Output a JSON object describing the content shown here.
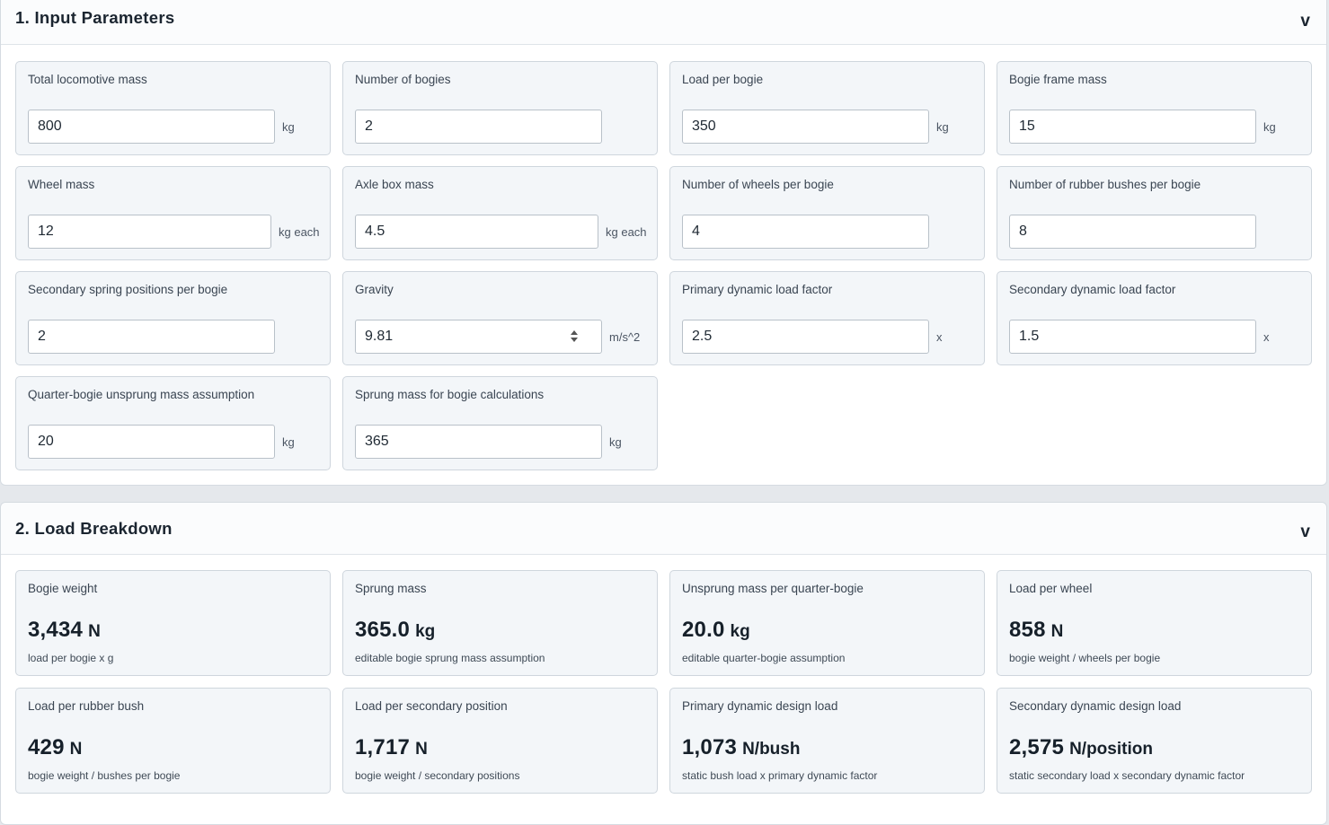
{
  "sections": [
    {
      "number": "1.",
      "title": "1. Input Parameters",
      "toggle": "v"
    },
    {
      "number": "2.",
      "title": "2. Load Breakdown",
      "toggle": "v"
    }
  ],
  "inputs": [
    {
      "label": "Total locomotive mass",
      "value": "800",
      "unit": "kg"
    },
    {
      "label": "Number of bogies",
      "value": "2",
      "unit": ""
    },
    {
      "label": "Load per bogie",
      "value": "350",
      "unit": "kg"
    },
    {
      "label": "Bogie frame mass",
      "value": "15",
      "unit": "kg"
    },
    {
      "label": "Wheel mass",
      "value": "12",
      "unit": "kg each"
    },
    {
      "label": "Axle box mass",
      "value": "4.5",
      "unit": "kg each"
    },
    {
      "label": "Number of wheels per bogie",
      "value": "4",
      "unit": ""
    },
    {
      "label": "Number of rubber bushes per bogie",
      "value": "8",
      "unit": ""
    },
    {
      "label": "Secondary spring positions per bogie",
      "value": "2",
      "unit": ""
    },
    {
      "label": "Gravity",
      "value": "9.81",
      "unit": "m/s^2"
    },
    {
      "label": "Primary dynamic load factor",
      "value": "2.5",
      "unit": "x"
    },
    {
      "label": "Secondary dynamic load factor",
      "value": "1.5",
      "unit": "x"
    },
    {
      "label": "Quarter-bogie unsprung mass assumption",
      "value": "20",
      "unit": "kg"
    },
    {
      "label": "Sprung mass for bogie calculations",
      "value": "365",
      "unit": "kg"
    }
  ],
  "results": [
    {
      "label": "Bogie weight",
      "value": "3,434",
      "unit": "N",
      "note": "load per bogie x g"
    },
    {
      "label": "Sprung mass",
      "value": "365.0",
      "unit": "kg",
      "note": "editable bogie sprung mass assumption"
    },
    {
      "label": "Unsprung mass per quarter-bogie",
      "value": "20.0",
      "unit": "kg",
      "note": "editable quarter-bogie assumption"
    },
    {
      "label": "Load per wheel",
      "value": "858",
      "unit": "N",
      "note": "bogie weight / wheels per bogie"
    },
    {
      "label": "Load per rubber bush",
      "value": "429",
      "unit": "N",
      "note": "bogie weight / bushes per bogie"
    },
    {
      "label": "Load per secondary position",
      "value": "1,717",
      "unit": "N",
      "note": "bogie weight / secondary positions"
    },
    {
      "label": "Primary dynamic design load",
      "value": "1,073",
      "unit": "N/bush",
      "note": "static bush load x primary dynamic factor"
    },
    {
      "label": "Secondary dynamic design load",
      "value": "2,575",
      "unit": "N/position",
      "note": "static secondary load x secondary dynamic factor"
    }
  ]
}
